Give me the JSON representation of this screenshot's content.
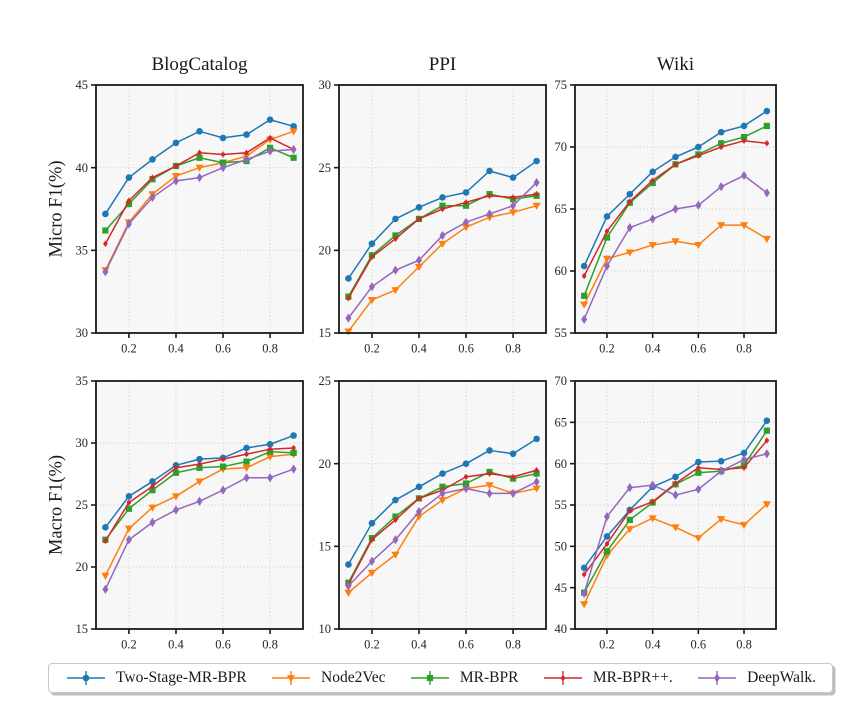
{
  "figure": {
    "row_labels": [
      "Micro F1(%)",
      "Macro F1(%)"
    ],
    "col_titles": [
      "BlogCatalog",
      "PPI",
      "Wiki"
    ]
  },
  "colors": {
    "blue": "#1f77b4",
    "orange": "#ff7f0e",
    "green": "#2ca02c",
    "red": "#d62728",
    "purple": "#9467bd",
    "spine": "#1a1a1a",
    "tick_text": "#262626",
    "grid": "#c8c8c8",
    "plot_bg": "#f7f7f7"
  },
  "legend": {
    "entries": [
      {
        "label": "Two-Stage-MR-BPR",
        "color": "#1f77b4",
        "marker": "circle"
      },
      {
        "label": "Node2Vec",
        "color": "#ff7f0e",
        "marker": "triangle-down"
      },
      {
        "label": "MR-BPR",
        "color": "#2ca02c",
        "marker": "square"
      },
      {
        "label": "MR-BPR++.",
        "color": "#d62728",
        "marker": "dot"
      },
      {
        "label": "DeepWalk.",
        "color": "#9467bd",
        "marker": "diamond"
      }
    ]
  },
  "chart_data": [
    {
      "id": "blogcatalog-micro",
      "type": "line",
      "title": "BlogCatalog",
      "ylabel": "Micro F1(%)",
      "xlim": [
        0.06,
        0.94
      ],
      "ylim": [
        30,
        45
      ],
      "xticks": [
        0.2,
        0.4,
        0.6,
        0.8
      ],
      "xticklabels": [
        "0.2",
        "0.4",
        "0.6",
        "0.8"
      ],
      "yticks": [
        30,
        35,
        40,
        45
      ],
      "grid": true,
      "x": [
        0.1,
        0.2,
        0.3,
        0.4,
        0.5,
        0.6,
        0.7,
        0.8,
        0.9
      ],
      "series": [
        {
          "name": "Two-Stage-MR-BPR",
          "color": "#1f77b4",
          "marker": "circle",
          "values": [
            37.2,
            39.4,
            40.5,
            41.5,
            42.2,
            41.8,
            42.0,
            42.9,
            42.5
          ]
        },
        {
          "name": "Node2Vec",
          "color": "#ff7f0e",
          "marker": "triangle-down",
          "values": [
            33.8,
            36.7,
            38.4,
            39.5,
            40.0,
            40.3,
            40.7,
            41.7,
            42.2
          ]
        },
        {
          "name": "MR-BPR",
          "color": "#2ca02c",
          "marker": "square",
          "values": [
            36.2,
            37.8,
            39.3,
            40.1,
            40.6,
            40.3,
            40.4,
            41.2,
            40.6
          ]
        },
        {
          "name": "MR-BPR++.",
          "color": "#d62728",
          "marker": "dot",
          "values": [
            35.4,
            38.0,
            39.4,
            40.1,
            40.9,
            40.8,
            40.9,
            41.8,
            41.1
          ]
        },
        {
          "name": "DeepWalk.",
          "color": "#9467bd",
          "marker": "diamond",
          "values": [
            33.7,
            36.6,
            38.2,
            39.2,
            39.4,
            40.0,
            40.5,
            41.0,
            41.1
          ]
        }
      ]
    },
    {
      "id": "ppi-micro",
      "type": "line",
      "title": "PPI",
      "ylabel": "Micro F1(%)",
      "xlim": [
        0.06,
        0.94
      ],
      "ylim": [
        15,
        30
      ],
      "xticks": [
        0.2,
        0.4,
        0.6,
        0.8
      ],
      "xticklabels": [
        "0.2",
        "0.4",
        "0.6",
        "0.8"
      ],
      "yticks": [
        15,
        20,
        25,
        30
      ],
      "grid": true,
      "x": [
        0.1,
        0.2,
        0.3,
        0.4,
        0.5,
        0.6,
        0.7,
        0.8,
        0.9
      ],
      "series": [
        {
          "name": "Two-Stage-MR-BPR",
          "color": "#1f77b4",
          "marker": "circle",
          "values": [
            18.3,
            20.4,
            21.9,
            22.6,
            23.2,
            23.5,
            24.8,
            24.4,
            25.4
          ]
        },
        {
          "name": "Node2Vec",
          "color": "#ff7f0e",
          "marker": "triangle-down",
          "values": [
            15.1,
            17.0,
            17.6,
            19.0,
            20.4,
            21.4,
            22.0,
            22.3,
            22.7
          ]
        },
        {
          "name": "MR-BPR",
          "color": "#2ca02c",
          "marker": "square",
          "values": [
            17.2,
            19.7,
            20.9,
            21.9,
            22.7,
            22.7,
            23.4,
            23.1,
            23.3
          ]
        },
        {
          "name": "MR-BPR++.",
          "color": "#d62728",
          "marker": "dot",
          "values": [
            17.1,
            19.6,
            20.7,
            21.9,
            22.5,
            22.9,
            23.3,
            23.2,
            23.4
          ]
        },
        {
          "name": "DeepWalk.",
          "color": "#9467bd",
          "marker": "diamond",
          "values": [
            15.9,
            17.8,
            18.8,
            19.4,
            20.9,
            21.7,
            22.2,
            22.7,
            24.1
          ]
        }
      ]
    },
    {
      "id": "wiki-micro",
      "type": "line",
      "title": "Wiki",
      "ylabel": "Micro F1(%)",
      "xlim": [
        0.06,
        0.94
      ],
      "ylim": [
        55,
        75
      ],
      "xticks": [
        0.2,
        0.4,
        0.6,
        0.8
      ],
      "xticklabels": [
        "0.2",
        "0.4",
        "0.6",
        "0.8"
      ],
      "yticks": [
        55,
        60,
        65,
        70,
        75
      ],
      "grid": true,
      "x": [
        0.1,
        0.2,
        0.3,
        0.4,
        0.5,
        0.6,
        0.7,
        0.8,
        0.9
      ],
      "series": [
        {
          "name": "Two-Stage-MR-BPR",
          "color": "#1f77b4",
          "marker": "circle",
          "values": [
            60.4,
            64.4,
            66.2,
            68.0,
            69.2,
            70.0,
            71.2,
            71.7,
            72.9
          ]
        },
        {
          "name": "Node2Vec",
          "color": "#ff7f0e",
          "marker": "triangle-down",
          "values": [
            57.3,
            61.0,
            61.5,
            62.1,
            62.4,
            62.1,
            63.7,
            63.7,
            62.6
          ]
        },
        {
          "name": "MR-BPR",
          "color": "#2ca02c",
          "marker": "square",
          "values": [
            58.0,
            62.7,
            65.5,
            67.1,
            68.6,
            69.4,
            70.3,
            70.8,
            71.7
          ]
        },
        {
          "name": "MR-BPR++.",
          "color": "#d62728",
          "marker": "dot",
          "values": [
            59.6,
            63.2,
            65.6,
            67.3,
            68.6,
            69.3,
            70.0,
            70.5,
            70.3
          ]
        },
        {
          "name": "DeepWalk.",
          "color": "#9467bd",
          "marker": "diamond",
          "values": [
            56.1,
            60.4,
            63.5,
            64.2,
            65.0,
            65.3,
            66.8,
            67.7,
            66.3
          ]
        }
      ]
    },
    {
      "id": "blogcatalog-macro",
      "type": "line",
      "title": "",
      "ylabel": "Macro F1(%)",
      "xlim": [
        0.06,
        0.94
      ],
      "ylim": [
        15,
        35
      ],
      "xticks": [
        0.2,
        0.4,
        0.6,
        0.8
      ],
      "xticklabels": [
        "0.2",
        "0.4",
        "0.6",
        "0.8"
      ],
      "yticks": [
        15,
        20,
        25,
        30,
        35
      ],
      "grid": true,
      "x": [
        0.1,
        0.2,
        0.3,
        0.4,
        0.5,
        0.6,
        0.7,
        0.8,
        0.9
      ],
      "series": [
        {
          "name": "Two-Stage-MR-BPR",
          "color": "#1f77b4",
          "marker": "circle",
          "values": [
            23.2,
            25.7,
            26.9,
            28.2,
            28.7,
            28.8,
            29.6,
            29.9,
            30.6
          ]
        },
        {
          "name": "Node2Vec",
          "color": "#ff7f0e",
          "marker": "triangle-down",
          "values": [
            19.3,
            23.1,
            24.8,
            25.7,
            26.9,
            27.9,
            28.0,
            28.9,
            29.1
          ]
        },
        {
          "name": "MR-BPR",
          "color": "#2ca02c",
          "marker": "square",
          "values": [
            22.2,
            24.7,
            26.2,
            27.6,
            28.0,
            28.1,
            28.5,
            29.3,
            29.2
          ]
        },
        {
          "name": "MR-BPR++.",
          "color": "#d62728",
          "marker": "dot",
          "values": [
            22.1,
            25.2,
            26.5,
            28.0,
            28.3,
            28.7,
            29.1,
            29.5,
            29.6
          ]
        },
        {
          "name": "DeepWalk.",
          "color": "#9467bd",
          "marker": "diamond",
          "values": [
            18.2,
            22.2,
            23.6,
            24.6,
            25.3,
            26.2,
            27.2,
            27.2,
            27.9
          ]
        }
      ]
    },
    {
      "id": "ppi-macro",
      "type": "line",
      "title": "",
      "ylabel": "Macro F1(%)",
      "xlim": [
        0.06,
        0.94
      ],
      "ylim": [
        10,
        25
      ],
      "xticks": [
        0.2,
        0.4,
        0.6,
        0.8
      ],
      "xticklabels": [
        "0.2",
        "0.4",
        "0.6",
        "0.8"
      ],
      "yticks": [
        10,
        15,
        20,
        25
      ],
      "grid": true,
      "x": [
        0.1,
        0.2,
        0.3,
        0.4,
        0.5,
        0.6,
        0.7,
        0.8,
        0.9
      ],
      "series": [
        {
          "name": "Two-Stage-MR-BPR",
          "color": "#1f77b4",
          "marker": "circle",
          "values": [
            13.9,
            16.4,
            17.8,
            18.6,
            19.4,
            20.0,
            20.8,
            20.6,
            21.5
          ]
        },
        {
          "name": "Node2Vec",
          "color": "#ff7f0e",
          "marker": "triangle-down",
          "values": [
            12.2,
            13.4,
            14.5,
            16.8,
            17.8,
            18.5,
            18.7,
            18.2,
            18.5
          ]
        },
        {
          "name": "MR-BPR",
          "color": "#2ca02c",
          "marker": "square",
          "values": [
            12.8,
            15.5,
            16.8,
            17.9,
            18.6,
            18.8,
            19.5,
            19.1,
            19.4
          ]
        },
        {
          "name": "MR-BPR++.",
          "color": "#d62728",
          "marker": "dot",
          "values": [
            12.7,
            15.4,
            16.6,
            17.9,
            18.4,
            19.2,
            19.4,
            19.2,
            19.6
          ]
        },
        {
          "name": "DeepWalk.",
          "color": "#9467bd",
          "marker": "diamond",
          "values": [
            12.6,
            14.1,
            15.4,
            17.1,
            18.2,
            18.5,
            18.2,
            18.2,
            18.9
          ]
        }
      ]
    },
    {
      "id": "wiki-macro",
      "type": "line",
      "title": "",
      "ylabel": "Macro F1(%)",
      "xlim": [
        0.06,
        0.94
      ],
      "ylim": [
        40,
        70
      ],
      "xticks": [
        0.2,
        0.4,
        0.6,
        0.8
      ],
      "xticklabels": [
        "0.2",
        "0.4",
        "0.6",
        "0.8"
      ],
      "yticks": [
        40,
        45,
        50,
        55,
        60,
        65,
        70
      ],
      "grid": true,
      "x": [
        0.1,
        0.2,
        0.3,
        0.4,
        0.5,
        0.6,
        0.7,
        0.8,
        0.9
      ],
      "series": [
        {
          "name": "Two-Stage-MR-BPR",
          "color": "#1f77b4",
          "marker": "circle",
          "values": [
            47.4,
            51.2,
            54.4,
            57.2,
            58.4,
            60.2,
            60.3,
            61.3,
            65.2
          ]
        },
        {
          "name": "Node2Vec",
          "color": "#ff7f0e",
          "marker": "triangle-down",
          "values": [
            43.0,
            48.9,
            52.1,
            53.4,
            52.3,
            51.0,
            53.3,
            52.6,
            55.1
          ]
        },
        {
          "name": "MR-BPR",
          "color": "#2ca02c",
          "marker": "square",
          "values": [
            44.4,
            49.4,
            53.2,
            55.3,
            57.5,
            58.9,
            59.1,
            59.8,
            64.0
          ]
        },
        {
          "name": "MR-BPR++.",
          "color": "#d62728",
          "marker": "dot",
          "values": [
            46.6,
            50.3,
            54.3,
            55.4,
            57.6,
            59.5,
            59.3,
            59.5,
            62.8
          ]
        },
        {
          "name": "DeepWalk.",
          "color": "#9467bd",
          "marker": "diamond",
          "values": [
            44.3,
            53.6,
            57.1,
            57.4,
            56.2,
            56.9,
            59.1,
            60.5,
            61.2
          ]
        }
      ]
    }
  ]
}
